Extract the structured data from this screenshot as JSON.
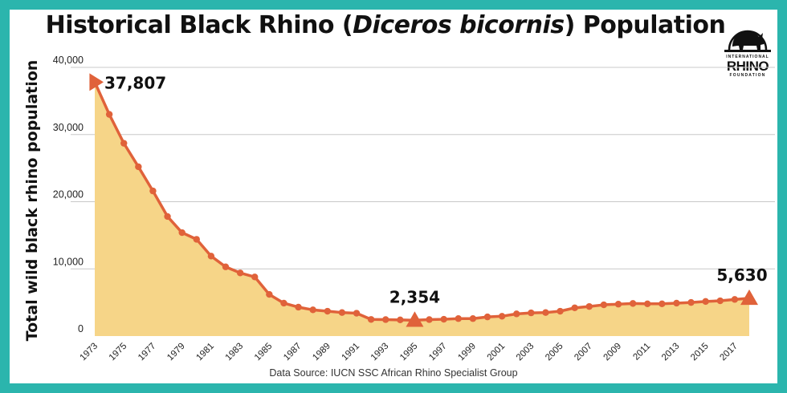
{
  "title": {
    "before": "Historical Black Rhino (",
    "italic": "Diceros bicornis",
    "after": ") Population"
  },
  "logo": {
    "top_text": "INTERNATIONAL",
    "name": "RHINO",
    "bottom_text": "FOUNDATION"
  },
  "source": "Data Source: IUCN SSC African Rhino Specialist Group",
  "colors": {
    "background_border": "#2bb5ad",
    "line": "#e0623a",
    "area_fill": "#f6d588",
    "grid": "#c8c8c8"
  },
  "chart_data": {
    "type": "area",
    "title": "Historical Black Rhino (Diceros bicornis) Population",
    "xlabel": "",
    "ylabel": "Total wild black rhino population",
    "ylim": [
      0,
      40000
    ],
    "yticks": [
      0,
      10000,
      20000,
      30000,
      40000
    ],
    "ytick_labels": [
      "0",
      "10,000",
      "20,000",
      "30,000",
      "40,000"
    ],
    "xtick_labels": [
      "1973",
      "1975",
      "1977",
      "1979",
      "1981",
      "1983",
      "1985",
      "1987",
      "1989",
      "1991",
      "1993",
      "1995",
      "1997",
      "1999",
      "2001",
      "2003",
      "2005",
      "2007",
      "2009",
      "2011",
      "2013",
      "2015",
      "2017"
    ],
    "grid": true,
    "series": [
      {
        "x": [
          1973,
          1974,
          1975,
          1976,
          1977,
          1978,
          1979,
          1980,
          1981,
          1982,
          1983,
          1984,
          1985,
          1986,
          1987,
          1988,
          1989,
          1990,
          1991,
          1992,
          1993,
          1994,
          1995,
          1996,
          1997,
          1998,
          1999,
          2000,
          2001,
          2002,
          2003,
          2004,
          2005,
          2006,
          2007,
          2008,
          2009,
          2010,
          2011,
          2012,
          2013,
          2014,
          2015,
          2016,
          2017,
          2018
        ],
        "values": [
          37807,
          33000,
          28700,
          25200,
          21600,
          17800,
          15400,
          14400,
          11900,
          10300,
          9400,
          8800,
          6200,
          4900,
          4300,
          3900,
          3700,
          3500,
          3400,
          2475,
          2450,
          2410,
          2354,
          2450,
          2500,
          2600,
          2600,
          2850,
          2950,
          3300,
          3450,
          3500,
          3700,
          4200,
          4400,
          4650,
          4750,
          4850,
          4800,
          4800,
          4900,
          5000,
          5150,
          5250,
          5450,
          5630
        ]
      }
    ],
    "annotations": [
      {
        "x": 1973,
        "label": "37,807"
      },
      {
        "x": 1995,
        "label": "2,354"
      },
      {
        "x": 2018,
        "label": "5,630"
      }
    ]
  }
}
